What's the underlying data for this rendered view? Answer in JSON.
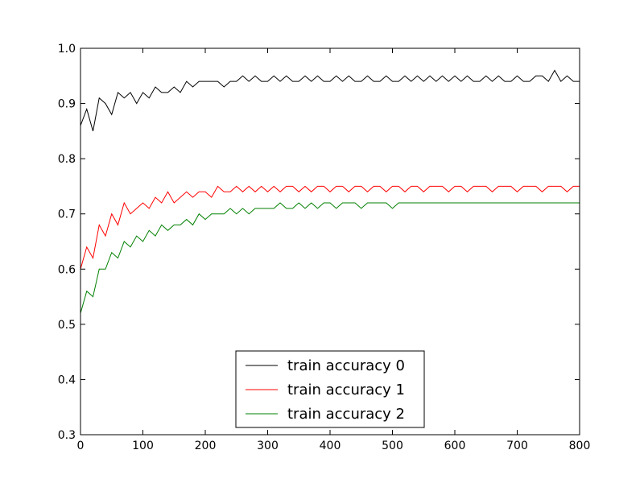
{
  "chart_data": {
    "type": "line",
    "title": "",
    "xlabel": "",
    "ylabel": "",
    "xlim": [
      0,
      800
    ],
    "ylim": [
      0.3,
      1.0
    ],
    "x_ticks": [
      "0",
      "100",
      "200",
      "300",
      "400",
      "500",
      "600",
      "700",
      "800"
    ],
    "y_ticks": [
      "0.3",
      "0.4",
      "0.5",
      "0.6",
      "0.7",
      "0.8",
      "0.9",
      "1.0"
    ],
    "grid": false,
    "legend_position": "lower-center",
    "series": [
      {
        "name": "train accuracy 0",
        "color": "#000000",
        "x": [
          0,
          10,
          20,
          30,
          40,
          50,
          60,
          70,
          80,
          90,
          100,
          110,
          120,
          130,
          140,
          150,
          160,
          170,
          180,
          190,
          200,
          210,
          220,
          230,
          240,
          250,
          260,
          270,
          280,
          290,
          300,
          310,
          320,
          330,
          340,
          350,
          360,
          370,
          380,
          390,
          400,
          410,
          420,
          430,
          440,
          450,
          460,
          470,
          480,
          490,
          500,
          510,
          520,
          530,
          540,
          550,
          560,
          570,
          580,
          590,
          600,
          610,
          620,
          630,
          640,
          650,
          660,
          670,
          680,
          690,
          700,
          710,
          720,
          730,
          740,
          750,
          760,
          770,
          780,
          790,
          800
        ],
        "y": [
          0.86,
          0.89,
          0.85,
          0.91,
          0.9,
          0.88,
          0.92,
          0.91,
          0.92,
          0.9,
          0.92,
          0.91,
          0.93,
          0.92,
          0.92,
          0.93,
          0.92,
          0.94,
          0.93,
          0.94,
          0.94,
          0.94,
          0.94,
          0.93,
          0.94,
          0.94,
          0.95,
          0.94,
          0.95,
          0.94,
          0.94,
          0.95,
          0.94,
          0.95,
          0.94,
          0.94,
          0.95,
          0.94,
          0.95,
          0.94,
          0.94,
          0.95,
          0.94,
          0.95,
          0.94,
          0.94,
          0.95,
          0.94,
          0.94,
          0.95,
          0.94,
          0.94,
          0.95,
          0.94,
          0.95,
          0.94,
          0.95,
          0.94,
          0.95,
          0.94,
          0.95,
          0.94,
          0.95,
          0.94,
          0.94,
          0.95,
          0.94,
          0.95,
          0.94,
          0.94,
          0.95,
          0.94,
          0.94,
          0.95,
          0.95,
          0.94,
          0.96,
          0.94,
          0.95,
          0.94,
          0.94
        ]
      },
      {
        "name": "train accuracy 1",
        "color": "#ff0000",
        "x": [
          0,
          10,
          20,
          30,
          40,
          50,
          60,
          70,
          80,
          90,
          100,
          110,
          120,
          130,
          140,
          150,
          160,
          170,
          180,
          190,
          200,
          210,
          220,
          230,
          240,
          250,
          260,
          270,
          280,
          290,
          300,
          310,
          320,
          330,
          340,
          350,
          360,
          370,
          380,
          390,
          400,
          410,
          420,
          430,
          440,
          450,
          460,
          470,
          480,
          490,
          500,
          510,
          520,
          530,
          540,
          550,
          560,
          570,
          580,
          590,
          600,
          610,
          620,
          630,
          640,
          650,
          660,
          670,
          680,
          690,
          700,
          710,
          720,
          730,
          740,
          750,
          760,
          770,
          780,
          790,
          800
        ],
        "y": [
          0.6,
          0.64,
          0.62,
          0.68,
          0.66,
          0.7,
          0.68,
          0.72,
          0.7,
          0.71,
          0.72,
          0.71,
          0.73,
          0.72,
          0.74,
          0.72,
          0.73,
          0.74,
          0.73,
          0.74,
          0.74,
          0.73,
          0.75,
          0.74,
          0.74,
          0.75,
          0.74,
          0.75,
          0.74,
          0.75,
          0.74,
          0.75,
          0.74,
          0.75,
          0.75,
          0.74,
          0.75,
          0.74,
          0.75,
          0.75,
          0.74,
          0.75,
          0.75,
          0.74,
          0.75,
          0.75,
          0.74,
          0.75,
          0.75,
          0.74,
          0.75,
          0.75,
          0.74,
          0.75,
          0.75,
          0.74,
          0.75,
          0.75,
          0.75,
          0.74,
          0.75,
          0.75,
          0.74,
          0.75,
          0.75,
          0.75,
          0.74,
          0.75,
          0.75,
          0.75,
          0.74,
          0.75,
          0.75,
          0.75,
          0.74,
          0.75,
          0.75,
          0.75,
          0.74,
          0.75,
          0.75
        ]
      },
      {
        "name": "train accuracy 2",
        "color": "#008000",
        "x": [
          0,
          10,
          20,
          30,
          40,
          50,
          60,
          70,
          80,
          90,
          100,
          110,
          120,
          130,
          140,
          150,
          160,
          170,
          180,
          190,
          200,
          210,
          220,
          230,
          240,
          250,
          260,
          270,
          280,
          290,
          300,
          310,
          320,
          330,
          340,
          350,
          360,
          370,
          380,
          390,
          400,
          410,
          420,
          430,
          440,
          450,
          460,
          470,
          480,
          490,
          500,
          510,
          520,
          530,
          540,
          550,
          560,
          570,
          580,
          590,
          600,
          610,
          620,
          630,
          640,
          650,
          660,
          670,
          680,
          690,
          700,
          710,
          720,
          730,
          740,
          750,
          760,
          770,
          780,
          790,
          800
        ],
        "y": [
          0.52,
          0.56,
          0.55,
          0.6,
          0.6,
          0.63,
          0.62,
          0.65,
          0.64,
          0.66,
          0.65,
          0.67,
          0.66,
          0.68,
          0.67,
          0.68,
          0.68,
          0.69,
          0.68,
          0.7,
          0.69,
          0.7,
          0.7,
          0.7,
          0.71,
          0.7,
          0.71,
          0.7,
          0.71,
          0.71,
          0.71,
          0.71,
          0.72,
          0.71,
          0.71,
          0.72,
          0.71,
          0.72,
          0.71,
          0.72,
          0.72,
          0.71,
          0.72,
          0.72,
          0.72,
          0.71,
          0.72,
          0.72,
          0.72,
          0.72,
          0.71,
          0.72,
          0.72,
          0.72,
          0.72,
          0.72,
          0.72,
          0.72,
          0.72,
          0.72,
          0.72,
          0.72,
          0.72,
          0.72,
          0.72,
          0.72,
          0.72,
          0.72,
          0.72,
          0.72,
          0.72,
          0.72,
          0.72,
          0.72,
          0.72,
          0.72,
          0.72,
          0.72,
          0.72,
          0.72,
          0.72
        ]
      }
    ]
  }
}
